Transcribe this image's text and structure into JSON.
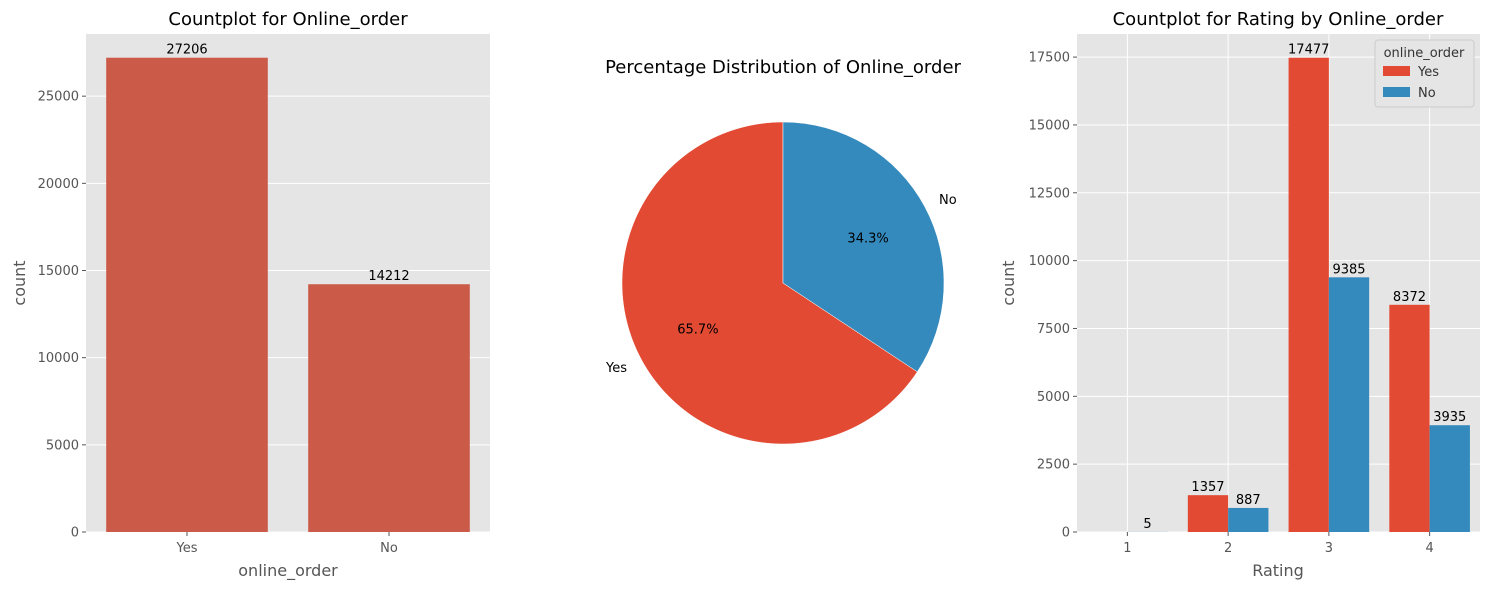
{
  "colors": {
    "yes": "#E24A33",
    "no": "#348ABD",
    "panel": "#E5E5E5",
    "grid": "#FFFFFF"
  },
  "chart_data": [
    {
      "type": "bar",
      "title": "Countplot for Online_order",
      "xlabel": "online_order",
      "ylabel": "count",
      "categories": [
        "Yes",
        "No"
      ],
      "values": [
        27206,
        14212
      ],
      "data_labels": [
        "27206",
        "14212"
      ],
      "ylim": [
        0,
        28566
      ],
      "yticks": [
        0,
        5000,
        10000,
        15000,
        20000,
        25000
      ],
      "ytick_labels": [
        "0",
        "5000",
        "10000",
        "15000",
        "20000",
        "25000"
      ],
      "grid": true
    },
    {
      "type": "pie",
      "title": "Percentage Distribution of Online_order",
      "labels": [
        "Yes",
        "No"
      ],
      "values": [
        65.7,
        34.3
      ],
      "pct_labels": [
        "65.7%",
        "34.3%"
      ]
    },
    {
      "type": "bar",
      "title": "Countplot for Rating by Online_order",
      "xlabel": "Rating",
      "ylabel": "count",
      "categories": [
        "1",
        "2",
        "3",
        "4"
      ],
      "series": [
        {
          "name": "Yes",
          "values": [
            0,
            1357,
            17477,
            8372
          ],
          "labels": [
            "",
            "1357",
            "17477",
            "8372"
          ]
        },
        {
          "name": "No",
          "values": [
            5,
            887,
            9385,
            3935
          ],
          "labels": [
            "5",
            "887",
            "9385",
            "3935"
          ]
        }
      ],
      "ylim": [
        0,
        18351
      ],
      "yticks": [
        0,
        2500,
        5000,
        7500,
        10000,
        12500,
        15000,
        17500
      ],
      "ytick_labels": [
        "0",
        "2500",
        "5000",
        "7500",
        "10000",
        "12500",
        "15000",
        "17500"
      ],
      "legend_title": "online_order",
      "legend_position": "top-right",
      "grid": true
    }
  ]
}
